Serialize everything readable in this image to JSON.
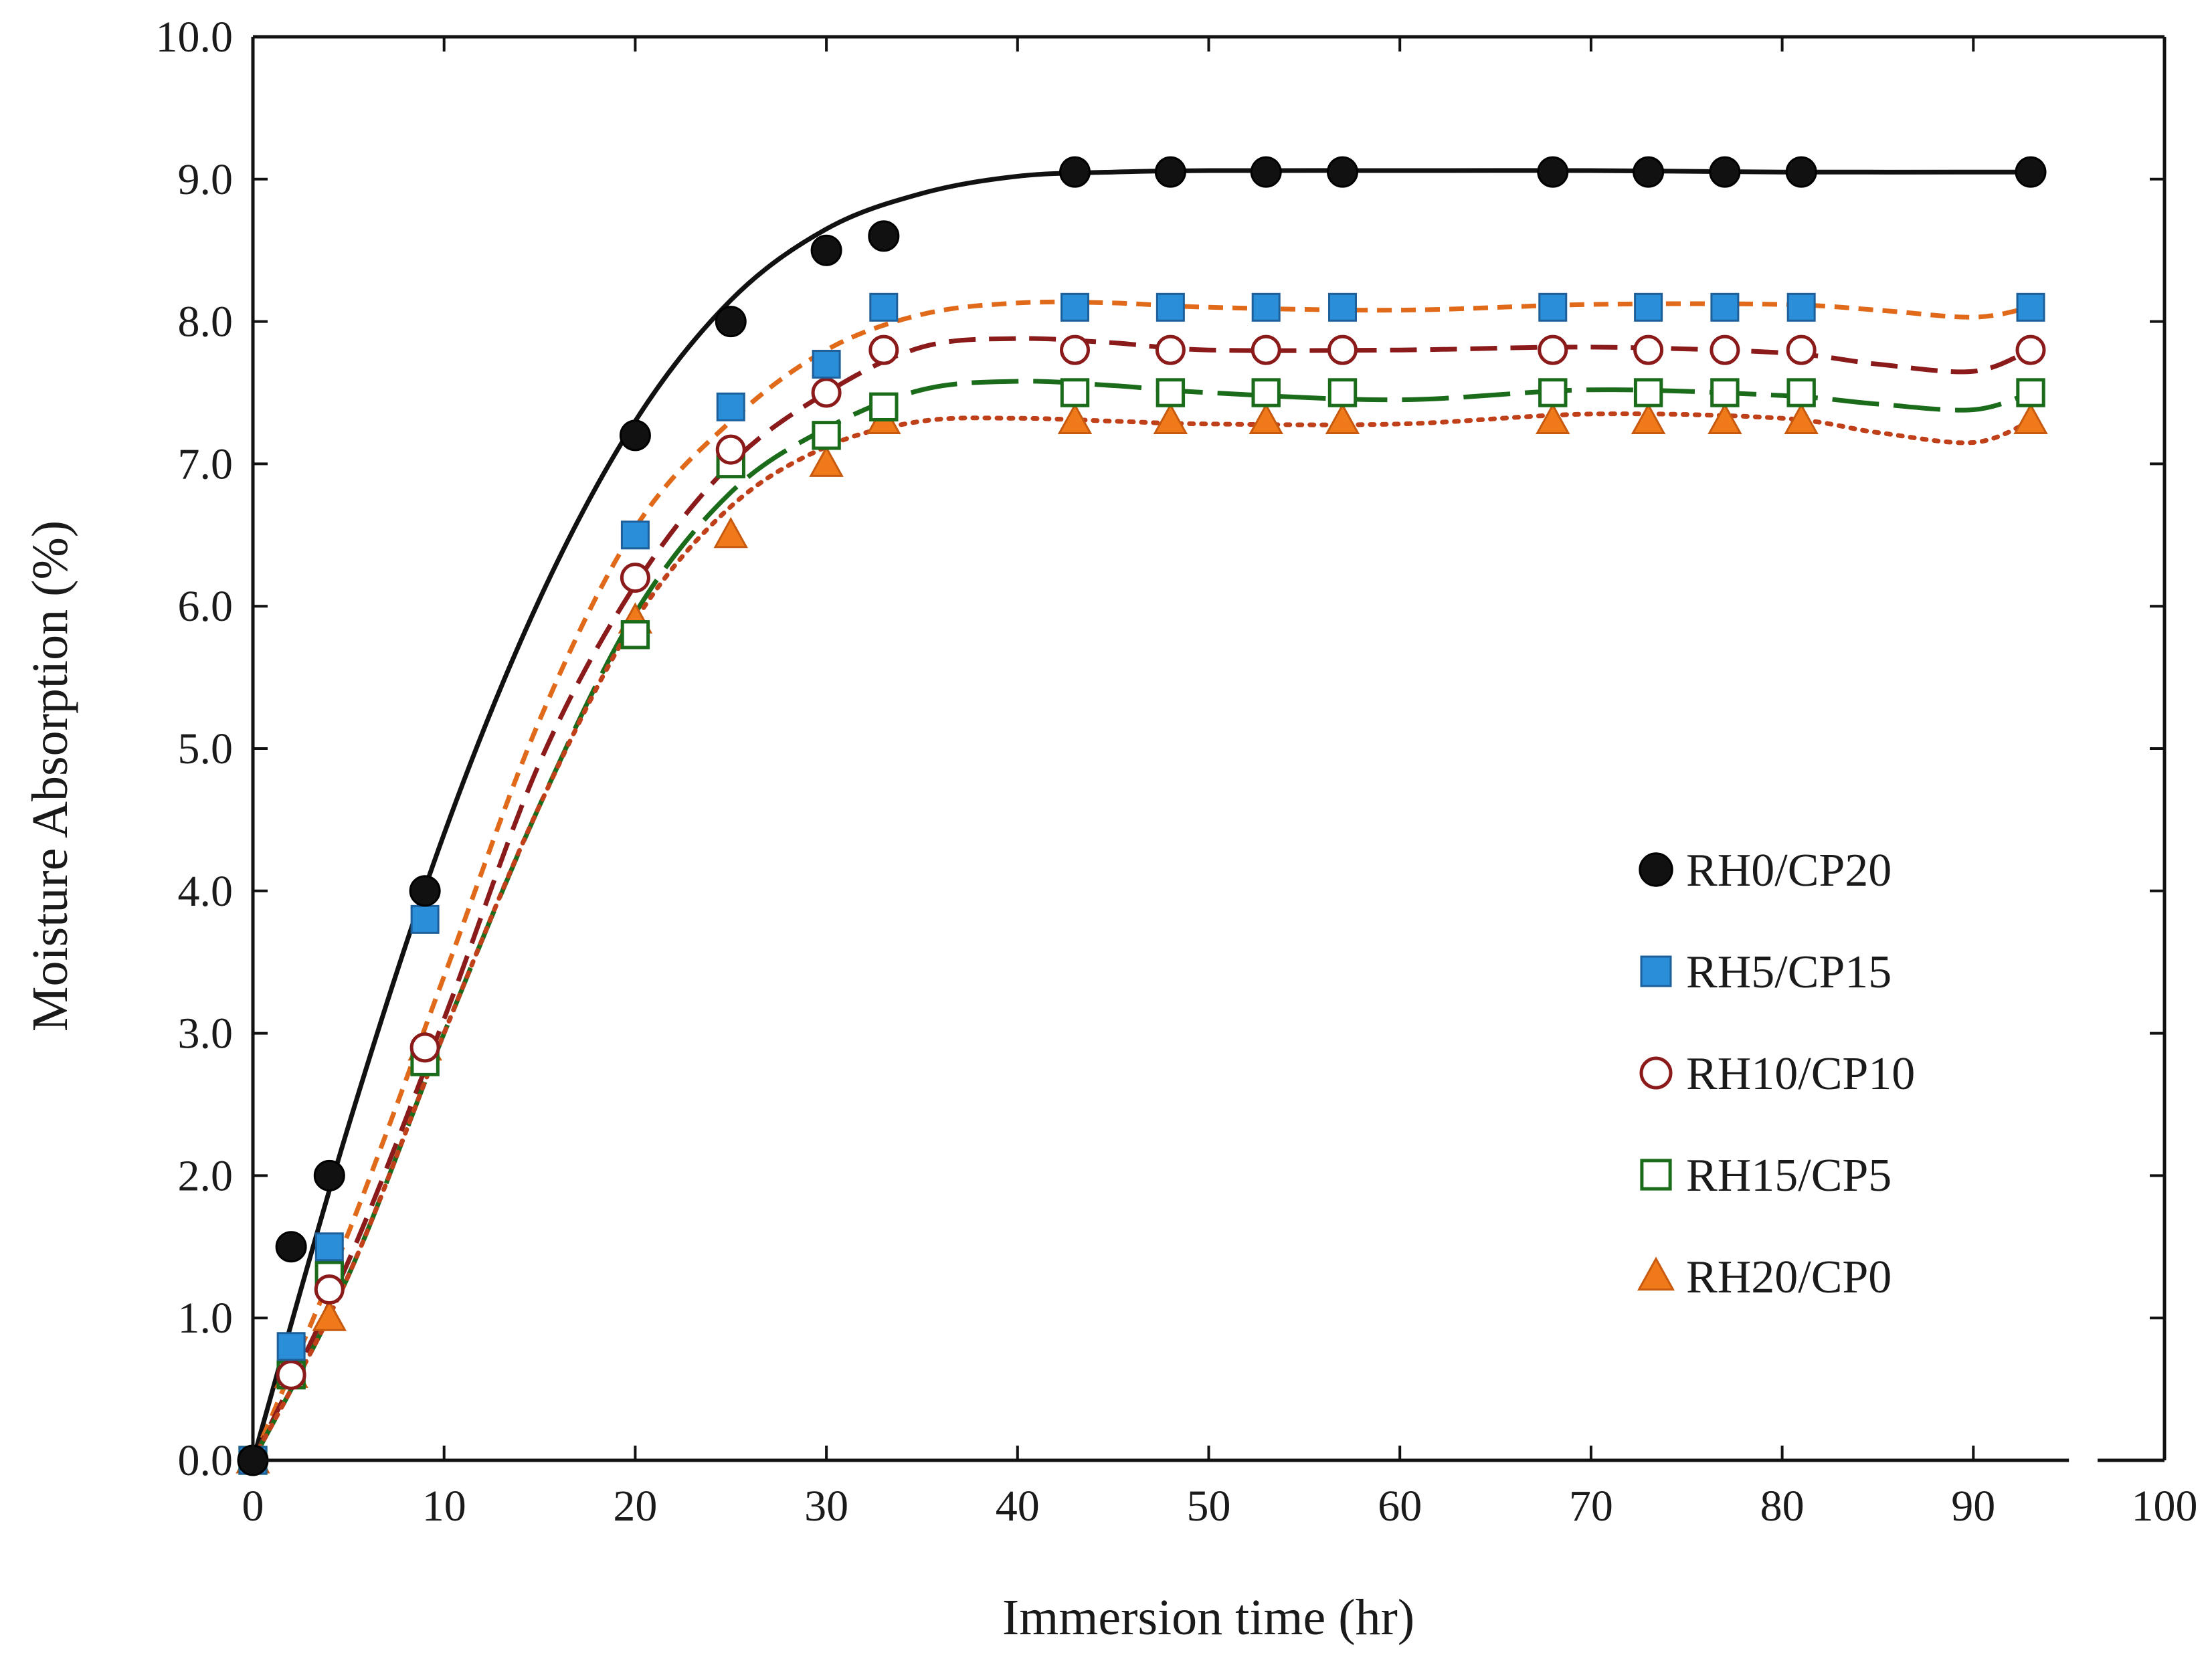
{
  "chart_data": {
    "type": "scatter",
    "xlabel": "Immersion time (hr)",
    "ylabel": "Moisture Absorption (%)",
    "xlim": [
      0,
      100
    ],
    "ylim": [
      0,
      10
    ],
    "x_ticks": [
      "0",
      "10",
      "20",
      "30",
      "40",
      "50",
      "60",
      "70",
      "80",
      "90",
      "100"
    ],
    "y_ticks": [
      "0.0",
      "1.0",
      "2.0",
      "3.0",
      "4.0",
      "5.0",
      "6.0",
      "7.0",
      "8.0",
      "9.0",
      "10.0"
    ],
    "grid": false,
    "legend_position": "right-center",
    "series": [
      {
        "name": "RH0/CP20",
        "marker": "filled-circle",
        "marker_color": "#111111",
        "line_color": "#111111",
        "line_style": "solid",
        "x": [
          0,
          2,
          4,
          9,
          20,
          25,
          30,
          33,
          43,
          48,
          53,
          57,
          68,
          73,
          77,
          81,
          93
        ],
        "y": [
          0.0,
          1.5,
          2.0,
          4.0,
          7.2,
          8.0,
          8.5,
          8.6,
          9.05,
          9.05,
          9.05,
          9.05,
          9.05,
          9.05,
          9.05,
          9.05,
          9.05
        ],
        "fit_x": [
          0,
          5,
          10,
          15,
          20,
          25,
          30,
          35,
          40,
          45,
          50,
          60,
          70,
          80,
          93
        ],
        "fit_y": [
          0.0,
          2.35,
          4.4,
          6.05,
          7.3,
          8.15,
          8.65,
          8.9,
          9.02,
          9.05,
          9.06,
          9.06,
          9.06,
          9.05,
          9.05
        ]
      },
      {
        "name": "RH5/CP15",
        "marker": "filled-square",
        "marker_color": "#2a8fd8",
        "line_color": "#e06a1a",
        "line_style": "short-dash",
        "x": [
          0,
          2,
          4,
          9,
          20,
          25,
          30,
          33,
          43,
          48,
          53,
          57,
          68,
          73,
          77,
          81,
          93
        ],
        "y": [
          0.0,
          0.8,
          1.5,
          3.8,
          6.5,
          7.4,
          7.7,
          8.1,
          8.1,
          8.1,
          8.1,
          8.1,
          8.1,
          8.1,
          8.1,
          8.1,
          8.1
        ],
        "fit_x": [
          0,
          5,
          10,
          15,
          20,
          25,
          30,
          35,
          40,
          45,
          50,
          60,
          70,
          80,
          85,
          90,
          93
        ],
        "fit_y": [
          0.0,
          1.6,
          3.4,
          5.2,
          6.55,
          7.3,
          7.8,
          8.05,
          8.13,
          8.13,
          8.1,
          8.08,
          8.12,
          8.12,
          8.08,
          8.03,
          8.1
        ]
      },
      {
        "name": "RH10/CP10",
        "marker": "open-circle",
        "marker_color": "#8b1a1a",
        "line_color": "#8b1a1a",
        "line_style": "dash",
        "x": [
          0,
          2,
          4,
          9,
          20,
          25,
          30,
          33,
          43,
          48,
          53,
          57,
          68,
          73,
          77,
          81,
          93
        ],
        "y": [
          0.0,
          0.6,
          1.2,
          2.9,
          6.2,
          7.1,
          7.5,
          7.8,
          7.8,
          7.8,
          7.8,
          7.8,
          7.8,
          7.8,
          7.8,
          7.8,
          7.8
        ],
        "fit_x": [
          0,
          5,
          10,
          15,
          20,
          25,
          30,
          35,
          40,
          45,
          50,
          60,
          70,
          80,
          85,
          90,
          93
        ],
        "fit_y": [
          0.0,
          1.4,
          3.1,
          4.9,
          6.15,
          7.0,
          7.5,
          7.82,
          7.88,
          7.85,
          7.8,
          7.8,
          7.82,
          7.78,
          7.7,
          7.65,
          7.8
        ]
      },
      {
        "name": "RH15/CP5",
        "marker": "open-square",
        "marker_color": "#1a6b1a",
        "line_color": "#1a6b1a",
        "line_style": "long-dash",
        "x": [
          0,
          2,
          4,
          9,
          20,
          25,
          30,
          33,
          43,
          48,
          53,
          57,
          68,
          73,
          77,
          81,
          93
        ],
        "y": [
          0.0,
          0.6,
          1.3,
          2.8,
          5.8,
          7.0,
          7.2,
          7.4,
          7.5,
          7.5,
          7.5,
          7.5,
          7.5,
          7.5,
          7.5,
          7.5,
          7.5
        ],
        "fit_x": [
          0,
          5,
          10,
          15,
          20,
          25,
          30,
          35,
          40,
          45,
          50,
          60,
          70,
          80,
          85,
          90,
          93
        ],
        "fit_y": [
          0.0,
          1.3,
          3.0,
          4.6,
          5.95,
          6.8,
          7.25,
          7.52,
          7.58,
          7.55,
          7.5,
          7.45,
          7.52,
          7.48,
          7.42,
          7.38,
          7.5
        ]
      },
      {
        "name": "RH20/CP0",
        "marker": "filled-triangle",
        "marker_color": "#f07a1a",
        "line_color": "#c0401a",
        "line_style": "dot",
        "x": [
          0,
          2,
          4,
          9,
          20,
          25,
          30,
          33,
          43,
          48,
          53,
          57,
          68,
          73,
          77,
          81,
          93
        ],
        "y": [
          0.0,
          0.6,
          1.0,
          2.9,
          5.9,
          6.5,
          7.0,
          7.3,
          7.3,
          7.3,
          7.3,
          7.3,
          7.3,
          7.3,
          7.3,
          7.3,
          7.3
        ],
        "fit_x": [
          0,
          5,
          10,
          15,
          20,
          25,
          30,
          35,
          40,
          45,
          50,
          60,
          70,
          80,
          85,
          90,
          93
        ],
        "fit_y": [
          0.0,
          1.3,
          3.0,
          4.6,
          5.9,
          6.7,
          7.12,
          7.3,
          7.32,
          7.3,
          7.28,
          7.28,
          7.35,
          7.32,
          7.22,
          7.15,
          7.3
        ]
      }
    ]
  }
}
